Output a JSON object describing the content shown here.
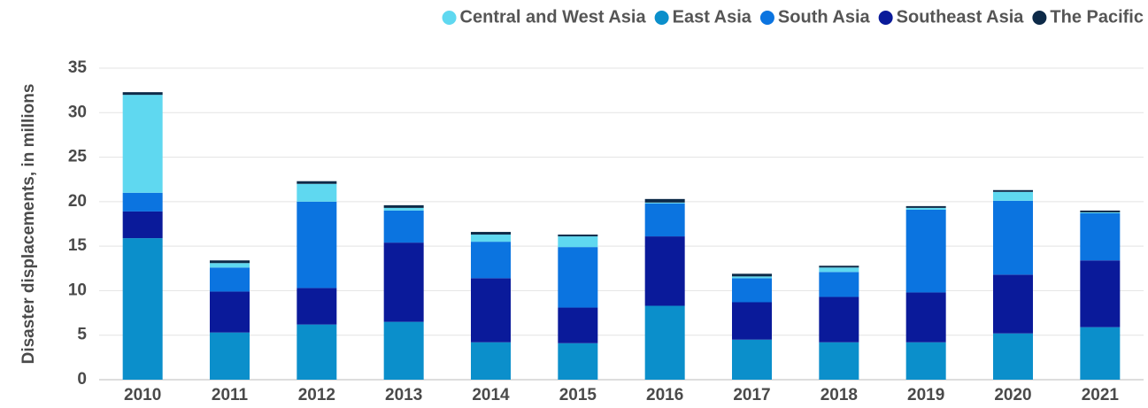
{
  "chart_data": {
    "type": "stacked_bar",
    "y_label": "Disaster displacements, in millions",
    "categories": [
      "2010",
      "2011",
      "2012",
      "2013",
      "2014",
      "2015",
      "2016",
      "2017",
      "2018",
      "2019",
      "2020",
      "2021"
    ],
    "series": [
      {
        "name": "Central and West Asia",
        "color": "#5fd8f0",
        "values": [
          11.0,
          0.5,
          2.0,
          0.3,
          0.8,
          1.2,
          0.1,
          0.2,
          0.5,
          0.2,
          1.0,
          0.1
        ]
      },
      {
        "name": "East Asia",
        "color": "#0b8fcb",
        "values": [
          15.9,
          5.3,
          6.2,
          6.5,
          4.2,
          4.1,
          8.3,
          4.5,
          4.2,
          4.2,
          5.2,
          5.9
        ]
      },
      {
        "name": "South Asia",
        "color": "#0b74e0",
        "values": [
          2.1,
          2.7,
          9.7,
          3.6,
          4.1,
          6.8,
          3.7,
          2.7,
          2.8,
          9.3,
          8.3,
          5.3
        ]
      },
      {
        "name": "Southeast Asia",
        "color": "#0a1a9a",
        "values": [
          3.0,
          4.6,
          4.1,
          8.9,
          7.2,
          4.0,
          7.8,
          4.2,
          5.1,
          5.6,
          6.6,
          7.5
        ]
      },
      {
        "name": "The Pacific",
        "color": "#0d2a48",
        "values": [
          0.3,
          0.3,
          0.3,
          0.3,
          0.3,
          0.2,
          0.4,
          0.3,
          0.2,
          0.2,
          0.2,
          0.2
        ]
      }
    ],
    "ylim": [
      0,
      35
    ],
    "yticks": [
      0,
      5,
      10,
      15,
      20,
      25,
      30,
      35
    ],
    "grid": true
  }
}
